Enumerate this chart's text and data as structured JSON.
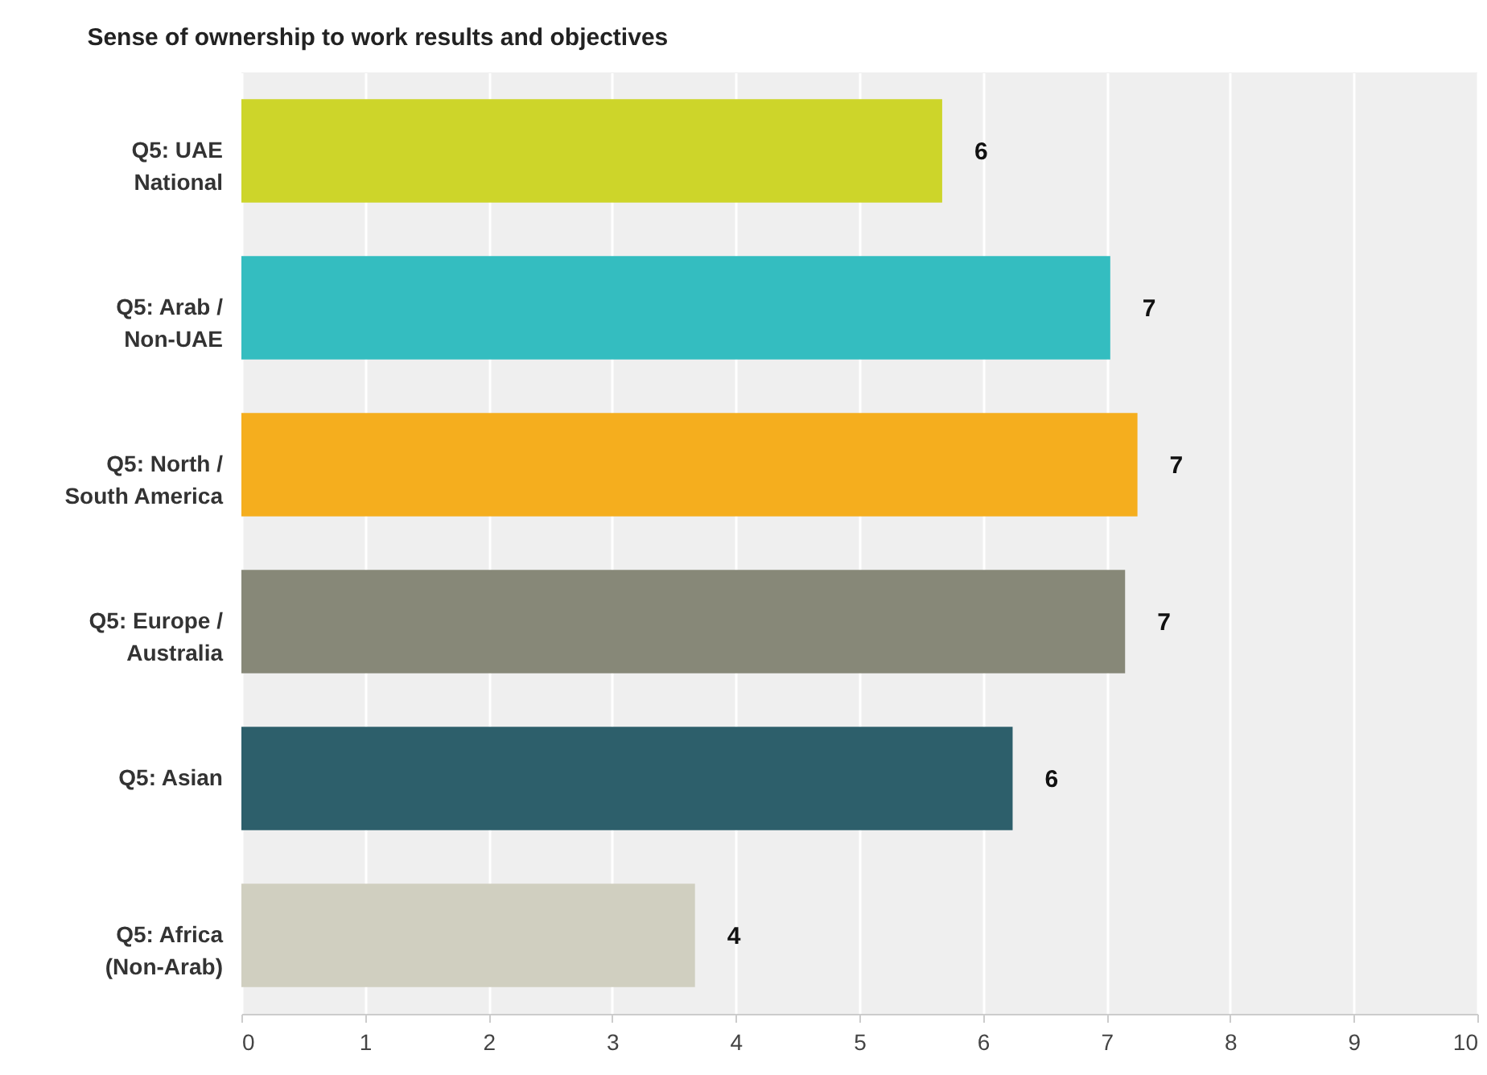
{
  "chart_data": {
    "type": "bar",
    "orientation": "horizontal",
    "title": "Sense of ownership to work results and objectives",
    "categories": [
      "Q5: UAE National",
      "Q5: Arab / Non-UAE",
      "Q5: North / South America",
      "Q5: Europe / Australia",
      "Q5: Asian",
      "Q5: Africa (Non-Arab)"
    ],
    "values": [
      5.67,
      7.03,
      7.25,
      7.15,
      6.24,
      3.67
    ],
    "value_labels": [
      "6",
      "7",
      "7",
      "7",
      "6",
      "4"
    ],
    "colors": [
      "#cdd52a",
      "#34bdc0",
      "#f5ae1e",
      "#878878",
      "#2d5f6b",
      "#d0cfc0"
    ],
    "xlim": [
      0,
      10
    ],
    "xticks": [
      0,
      1,
      2,
      3,
      4,
      5,
      6,
      7,
      8,
      9,
      10
    ],
    "grid": "x"
  }
}
